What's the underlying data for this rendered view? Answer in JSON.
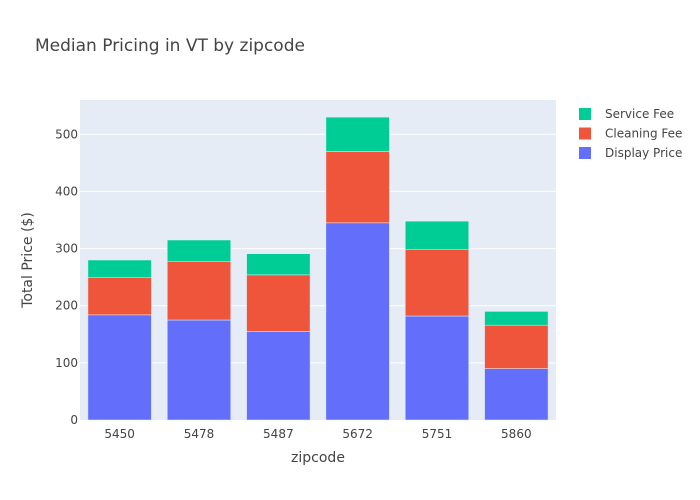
{
  "chart_data": {
    "type": "bar",
    "stacked": true,
    "title": "Median Pricing in VT by zipcode",
    "xlabel": "zipcode",
    "ylabel": "Total Price ($)",
    "categories": [
      "5450",
      "5478",
      "5487",
      "5672",
      "5751",
      "5860"
    ],
    "ylim": [
      0,
      560
    ],
    "yticks": [
      0,
      100,
      200,
      300,
      400,
      500
    ],
    "grid": true,
    "legend_position": "top-right",
    "series": [
      {
        "name": "Display Price",
        "color": "#636efa",
        "values": [
          184,
          175,
          155,
          345,
          182,
          90
        ]
      },
      {
        "name": "Cleaning Fee",
        "color": "#ef553b",
        "values": [
          65,
          102,
          99,
          125,
          116,
          76
        ]
      },
      {
        "name": "Service Fee",
        "color": "#00cc96",
        "values": [
          31,
          38,
          37,
          60,
          50,
          24
        ]
      }
    ],
    "plot_background": "#e5ecf6"
  }
}
